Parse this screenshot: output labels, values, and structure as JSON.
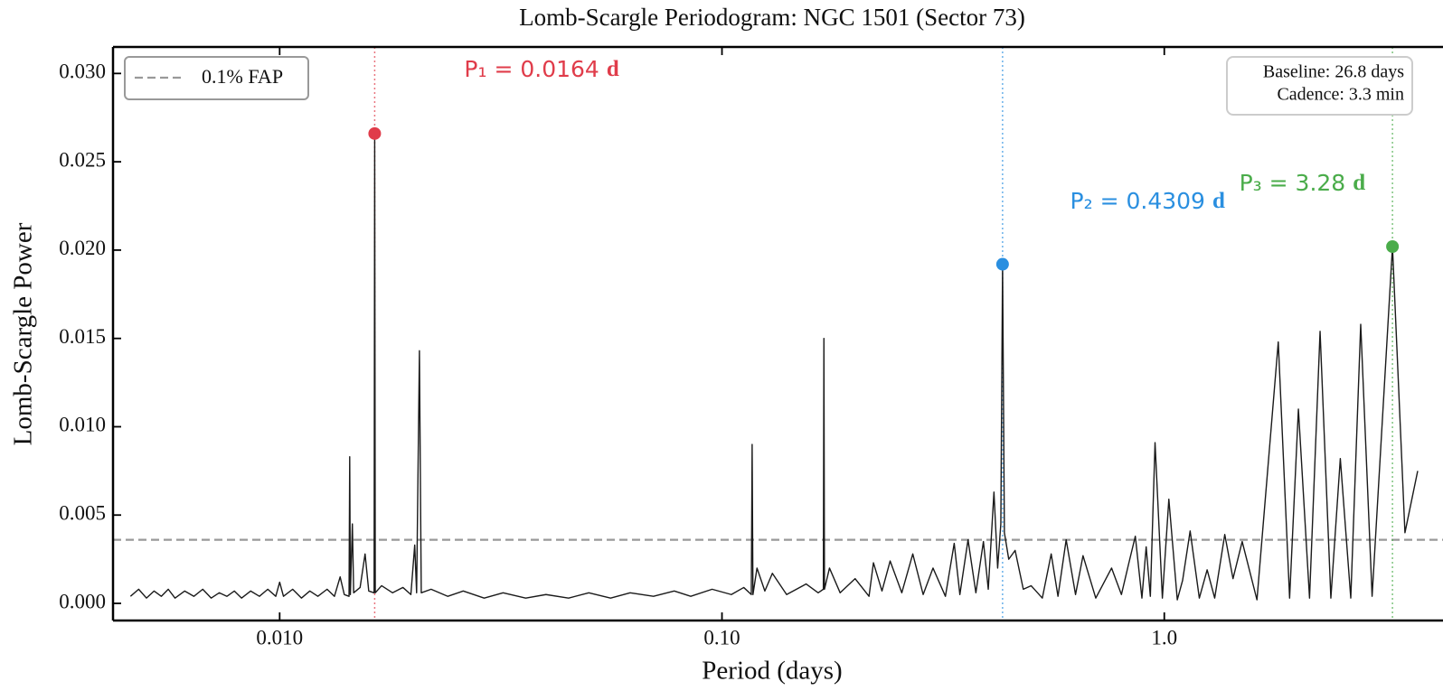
{
  "chart_data": {
    "type": "line",
    "title": "Lomb-Scargle Periodogram: NGC 1501 (Sector 73)",
    "xlabel": "Period (days)",
    "ylabel": "Lomb-Scargle Power",
    "xscale": "log",
    "xlim": [
      0.0042,
      3.74
    ],
    "ylim": [
      -0.00097,
      0.0315
    ],
    "xticks": [
      {
        "value": 0.01,
        "label": "0.010"
      },
      {
        "value": 0.1,
        "label": "0.10"
      },
      {
        "value": 1,
        "label": "1.0"
      }
    ],
    "yticks": [
      {
        "value": 0,
        "label": "0.000"
      },
      {
        "value": 0.005,
        "label": "0.005"
      },
      {
        "value": 0.01,
        "label": "0.010"
      },
      {
        "value": 0.015,
        "label": "0.015"
      },
      {
        "value": 0.02,
        "label": "0.020"
      },
      {
        "value": 0.025,
        "label": "0.025"
      },
      {
        "value": 0.03,
        "label": "0.030"
      }
    ],
    "series": [
      {
        "color": "#1a1a1a",
        "x": [
          0.0046,
          0.0048,
          0.005,
          0.0052,
          0.0054,
          0.0056,
          0.0058,
          0.0061,
          0.0064,
          0.0067,
          0.007,
          0.0073,
          0.0076,
          0.0079,
          0.0082,
          0.0086,
          0.009,
          0.0094,
          0.0098,
          0.01,
          0.0102,
          0.0107,
          0.0112,
          0.0117,
          0.0122,
          0.0128,
          0.0133,
          0.0137,
          0.014,
          0.01435,
          0.0144,
          0.01445,
          0.0146,
          0.0147,
          0.0152,
          0.0156,
          0.0159,
          0.01635,
          0.0164,
          0.01645,
          0.017,
          0.018,
          0.019,
          0.0198,
          0.0202,
          0.0204,
          0.0207,
          0.0209,
          0.022,
          0.024,
          0.026,
          0.029,
          0.032,
          0.036,
          0.04,
          0.045,
          0.05,
          0.056,
          0.062,
          0.07,
          0.078,
          0.085,
          0.095,
          0.105,
          0.112,
          0.1165,
          0.117,
          0.1175,
          0.12,
          0.125,
          0.13,
          0.14,
          0.155,
          0.165,
          0.1695,
          0.17,
          0.1705,
          0.175,
          0.185,
          0.2,
          0.215,
          0.22,
          0.23,
          0.24,
          0.255,
          0.27,
          0.285,
          0.3,
          0.32,
          0.335,
          0.345,
          0.36,
          0.375,
          0.39,
          0.4,
          0.412,
          0.42,
          0.427,
          0.4309,
          0.435,
          0.445,
          0.46,
          0.48,
          0.5,
          0.53,
          0.555,
          0.575,
          0.6,
          0.63,
          0.655,
          0.7,
          0.76,
          0.8,
          0.83,
          0.86,
          0.89,
          0.91,
          0.93,
          0.953,
          0.99,
          1.024,
          1.07,
          1.1,
          1.144,
          1.2,
          1.25,
          1.3,
          1.37,
          1.43,
          1.5,
          1.62,
          1.81,
          1.92,
          2.01,
          2.13,
          2.25,
          2.38,
          2.5,
          2.64,
          2.78,
          2.95,
          3.28,
          3.5,
          3.74
        ],
        "values": [
          0.0004,
          0.0008,
          0.0003,
          0.0007,
          0.0004,
          0.0008,
          0.0003,
          0.0007,
          0.0004,
          0.0008,
          0.0003,
          0.0006,
          0.0004,
          0.0007,
          0.0003,
          0.0007,
          0.0004,
          0.0008,
          0.0004,
          0.0012,
          0.0004,
          0.0008,
          0.0003,
          0.0007,
          0.0004,
          0.0008,
          0.0004,
          0.0015,
          0.0005,
          0.0004,
          0.0083,
          0.0005,
          0.0045,
          0.0006,
          0.0009,
          0.0028,
          0.0007,
          0.0006,
          0.0266,
          0.0006,
          0.001,
          0.0006,
          0.0009,
          0.0005,
          0.0033,
          0.0006,
          0.0143,
          0.0006,
          0.0008,
          0.0004,
          0.0007,
          0.0003,
          0.0006,
          0.0003,
          0.0005,
          0.0003,
          0.0006,
          0.0003,
          0.0006,
          0.0004,
          0.0007,
          0.0004,
          0.0008,
          0.0005,
          0.0009,
          0.0005,
          0.009,
          0.0005,
          0.002,
          0.0007,
          0.0017,
          0.0005,
          0.0011,
          0.0006,
          0.0008,
          0.015,
          0.0008,
          0.002,
          0.0006,
          0.0014,
          0.0004,
          0.0023,
          0.0007,
          0.0024,
          0.0006,
          0.0028,
          0.0005,
          0.002,
          0.0004,
          0.0034,
          0.0005,
          0.0036,
          0.0006,
          0.0035,
          0.0008,
          0.0063,
          0.002,
          0.0045,
          0.0192,
          0.004,
          0.0025,
          0.003,
          0.0008,
          0.001,
          0.0003,
          0.0028,
          0.0004,
          0.0036,
          0.0005,
          0.0027,
          0.0003,
          0.002,
          0.0005,
          0.0022,
          0.0038,
          0.0003,
          0.0032,
          0.0004,
          0.0091,
          0.0003,
          0.0059,
          0.0002,
          0.0013,
          0.0041,
          0.0003,
          0.0019,
          0.0003,
          0.0039,
          0.0014,
          0.0035,
          0.0002,
          0.0148,
          0.0003,
          0.011,
          0.0003,
          0.0154,
          0.0003,
          0.0082,
          0.0003,
          0.0158,
          0.0004,
          0.0202,
          0.004,
          0.0075
        ]
      }
    ],
    "threshold": {
      "name": "0.1% FAP",
      "value": 0.0036,
      "color": "#999999"
    },
    "peaks": [
      {
        "period": 0.0164,
        "power": 0.0266,
        "color": "#e03c4a",
        "label": "P₁ = 0.0164",
        "unit": "d"
      },
      {
        "period": 0.4309,
        "power": 0.0192,
        "color": "#2a8fe0",
        "label": "P₂ = 0.4309",
        "unit": "d"
      },
      {
        "period": 3.28,
        "power": 0.0202,
        "color": "#4aac4a",
        "label": "P₃ = 3.28",
        "unit": "d"
      }
    ],
    "legend": "upper left",
    "info": [
      "Baseline: 26.8 days",
      "Cadence: 3.3 min"
    ]
  }
}
